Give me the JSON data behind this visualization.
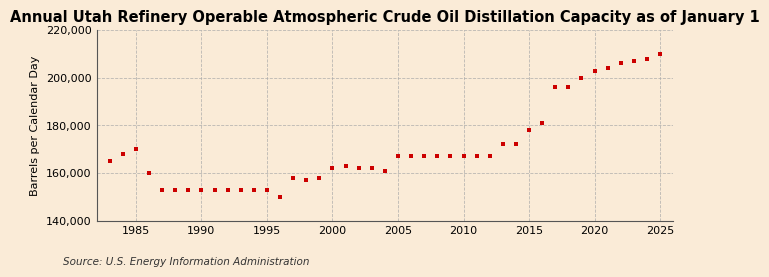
{
  "title": "Annual Utah Refinery Operable Atmospheric Crude Oil Distillation Capacity as of January 1",
  "ylabel": "Barrels per Calendar Day",
  "source": "Source: U.S. Energy Information Administration",
  "background_color": "#faebd7",
  "plot_bg_color": "#faebd7",
  "marker_color": "#cc0000",
  "grid_color": "#aaaaaa",
  "spine_color": "#555555",
  "years": [
    1983,
    1984,
    1985,
    1986,
    1987,
    1988,
    1989,
    1990,
    1991,
    1992,
    1993,
    1994,
    1995,
    1996,
    1997,
    1998,
    1999,
    2000,
    2001,
    2002,
    2003,
    2004,
    2005,
    2006,
    2007,
    2008,
    2009,
    2010,
    2011,
    2012,
    2013,
    2014,
    2015,
    2016,
    2017,
    2018,
    2019,
    2020,
    2021,
    2022,
    2023,
    2024,
    2025
  ],
  "values": [
    165000,
    168000,
    170000,
    160000,
    153000,
    153000,
    153000,
    153000,
    153000,
    153000,
    153000,
    153000,
    153000,
    150000,
    158000,
    157000,
    158000,
    162000,
    163000,
    162000,
    162000,
    161000,
    167000,
    167000,
    167000,
    167000,
    167000,
    167000,
    167000,
    167000,
    172000,
    172000,
    178000,
    181000,
    196000,
    196000,
    200000,
    203000,
    204000,
    206000,
    207000,
    208000,
    210000
  ],
  "ylim": [
    140000,
    220000
  ],
  "yticks": [
    140000,
    160000,
    180000,
    200000,
    220000
  ],
  "xticks": [
    1985,
    1990,
    1995,
    2000,
    2005,
    2010,
    2015,
    2020,
    2025
  ],
  "xlim": [
    1982,
    2026
  ],
  "title_fontsize": 10.5,
  "label_fontsize": 8,
  "tick_fontsize": 8,
  "source_fontsize": 7.5
}
